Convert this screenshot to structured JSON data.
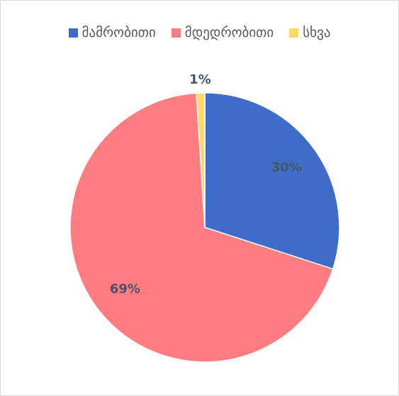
{
  "chart_data": {
    "type": "pie",
    "categories": [
      "მამრობითი",
      "მდედრობითი",
      "სხვა"
    ],
    "values": [
      30,
      69,
      1
    ],
    "value_labels": [
      "30%",
      "69%",
      "1%"
    ],
    "colors": [
      "#3f6cc9",
      "#ff7c80",
      "#ffd966"
    ],
    "legend": "top"
  }
}
